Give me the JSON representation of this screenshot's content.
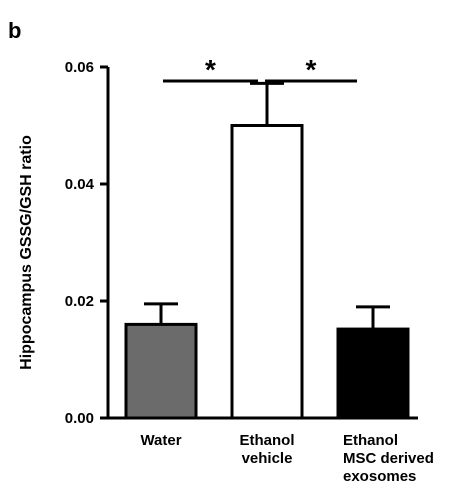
{
  "panel_label": "b",
  "chart_data": {
    "type": "bar",
    "categories": [
      [
        "Water"
      ],
      [
        "Ethanol",
        "vehicle"
      ],
      [
        "Ethanol",
        "MSC derived",
        "exosomes"
      ]
    ],
    "values": [
      0.016,
      0.05,
      0.0152
    ],
    "errors": [
      0.0035,
      0.0072,
      0.0038
    ],
    "bar_colors": [
      "#6b6b6b",
      "#ffffff",
      "#000000"
    ],
    "ylabel": "Hippocampus GSSG/GSH ratio",
    "ylim": [
      0,
      0.06
    ],
    "yticks": [
      "0.00",
      "0.02",
      "0.04",
      "0.06"
    ],
    "significance": [
      {
        "from": 0,
        "to": 1,
        "label": "*"
      },
      {
        "from": 1,
        "to": 2,
        "label": "*"
      }
    ]
  }
}
